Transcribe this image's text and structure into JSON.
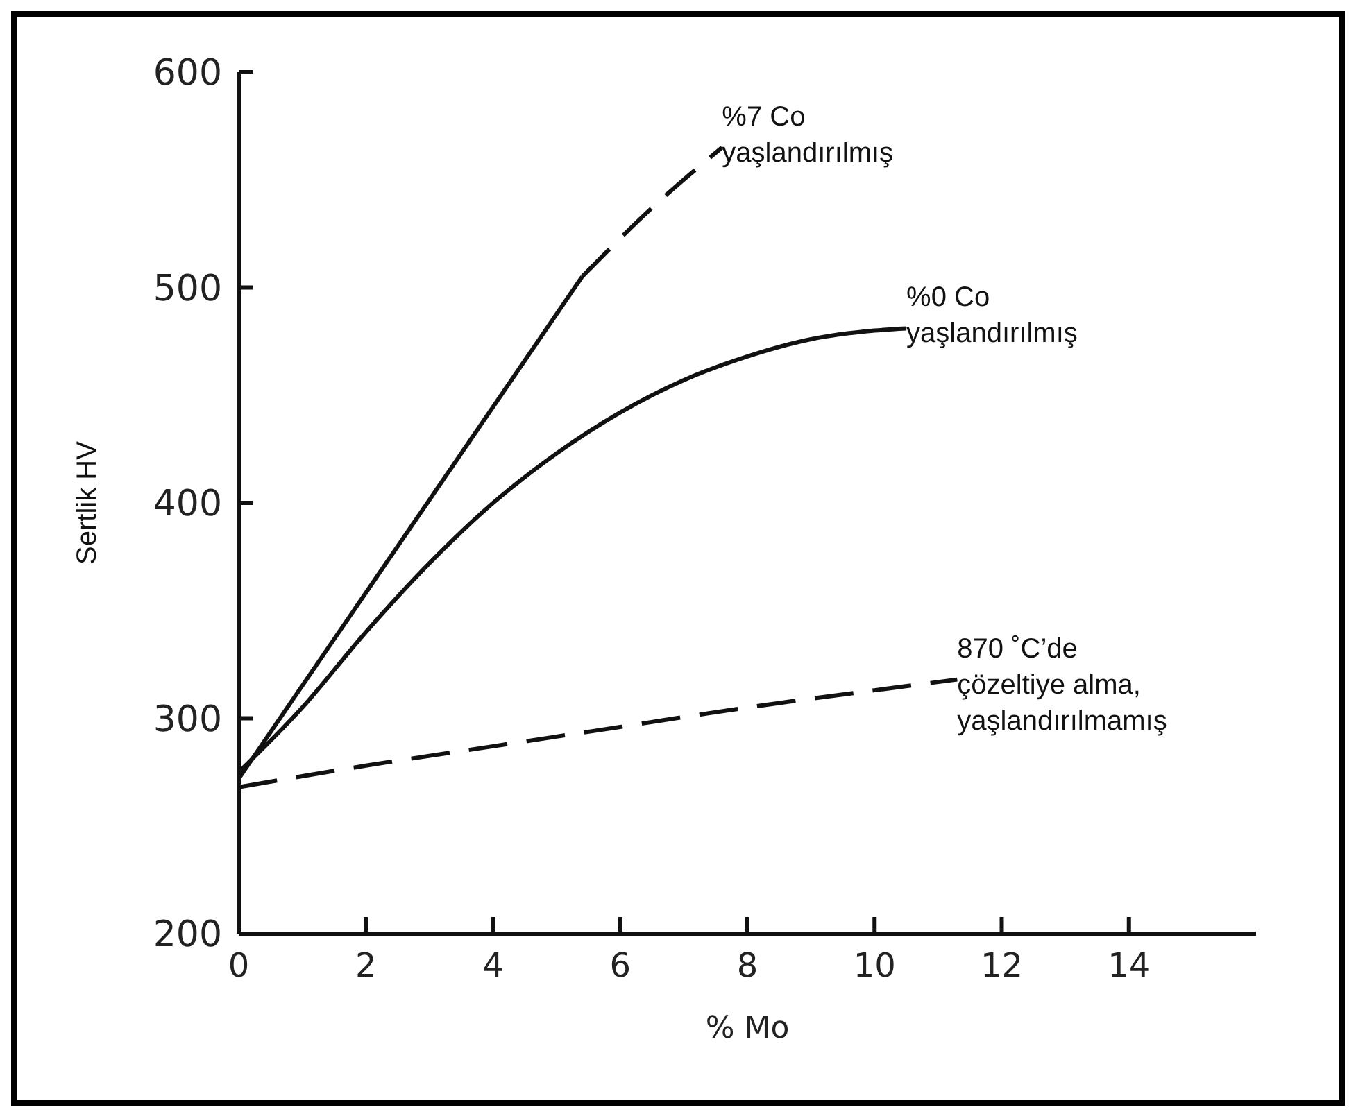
{
  "chart_data": {
    "type": "line",
    "xlabel": "% Mo",
    "ylabel": "Sertlik HV",
    "xlim": [
      0,
      16
    ],
    "xticks": [
      0,
      2,
      4,
      6,
      8,
      10,
      12,
      14
    ],
    "ylim": [
      200,
      600
    ],
    "yticks": [
      200,
      300,
      400,
      500,
      600
    ],
    "grid": false,
    "legend": false,
    "marker": "none",
    "series": [
      {
        "color": "#111111",
        "line_style": "solid",
        "x": [
          0,
          5.4
        ],
        "values": [
          272,
          505
        ]
      },
      {
        "color": "#111111",
        "line_style": "dashed",
        "x": [
          5.4,
          6.5,
          7.6
        ],
        "values": [
          505,
          537,
          565
        ]
      },
      {
        "color": "#111111",
        "line_style": "solid",
        "x": [
          0,
          1,
          2,
          3,
          4,
          5,
          6,
          7,
          8,
          9,
          10,
          10.5
        ],
        "values": [
          275,
          305,
          340,
          372,
          400,
          423,
          442,
          457,
          468,
          476,
          480,
          481
        ]
      },
      {
        "color": "#111111",
        "line_style": "dashed",
        "x": [
          0,
          2,
          4,
          6,
          8,
          10,
          11.3
        ],
        "values": [
          268,
          278,
          287,
          296,
          305,
          313,
          318
        ]
      }
    ],
    "annotations": [
      {
        "text": "%7 Co\nyaşlandırılmış",
        "x": 7.6,
        "y": 565
      },
      {
        "text": "%0 Co\nyaşlandırılmış",
        "x": 10.5,
        "y": 481
      },
      {
        "text": "870 ˚C’de\nçözeltiye alma,\nyaşlandırılmamış",
        "x": 11.3,
        "y": 318
      }
    ]
  }
}
